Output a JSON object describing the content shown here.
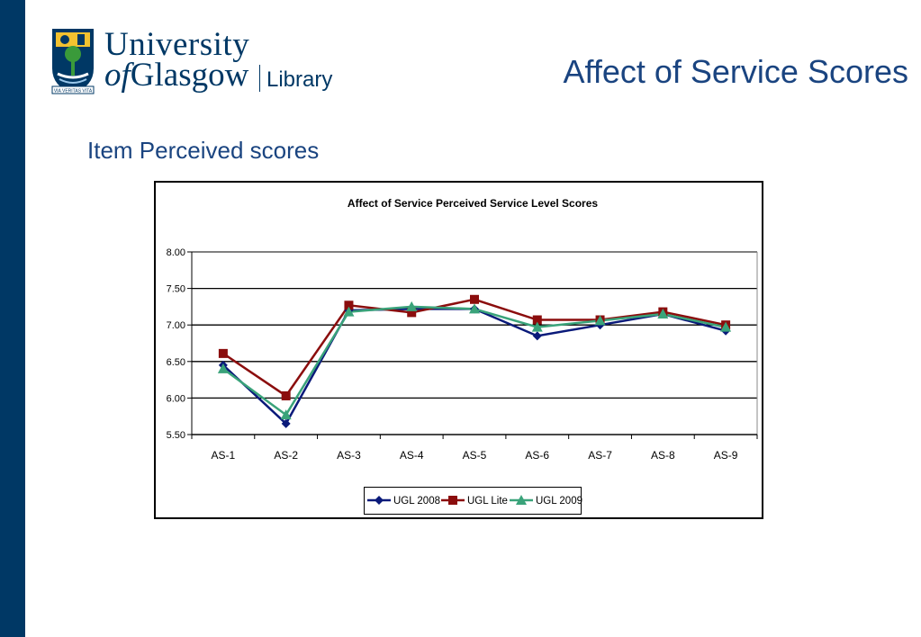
{
  "header": {
    "logo": {
      "line1": "University",
      "of": "of",
      "glasgow": "Glasgow",
      "library": "Library",
      "motto": "VIA VERITAS VITA"
    },
    "title": "Affect of Service Scores",
    "subtitle": "Item Perceived scores"
  },
  "colors": {
    "sidebar": "#003865",
    "title": "#1a4480",
    "series_ugl2008": "#0a1a7a",
    "series_ugllite": "#8b0d0d",
    "series_ugl2009": "#3aa37a"
  },
  "chart_data": {
    "type": "line",
    "title": "Affect of Service Perceived Service Level Scores",
    "xlabel": "",
    "ylabel": "",
    "categories": [
      "AS-1",
      "AS-2",
      "AS-3",
      "AS-4",
      "AS-5",
      "AS-6",
      "AS-7",
      "AS-8",
      "AS-9"
    ],
    "ylim": [
      5.5,
      8.0
    ],
    "yticks": [
      "8.00",
      "7.50",
      "7.00",
      "6.50",
      "6.00",
      "5.50"
    ],
    "grid": true,
    "legend": "bottom",
    "series": [
      {
        "name": "UGL 2008",
        "marker": "diamond",
        "values": [
          6.45,
          5.65,
          7.2,
          7.22,
          7.22,
          6.85,
          7.0,
          7.15,
          6.92
        ]
      },
      {
        "name": "UGL Lite",
        "marker": "square",
        "values": [
          6.61,
          6.03,
          7.27,
          7.17,
          7.35,
          7.07,
          7.07,
          7.18,
          7.0
        ]
      },
      {
        "name": "UGL 2009",
        "marker": "triangle",
        "values": [
          6.4,
          5.77,
          7.18,
          7.25,
          7.22,
          6.97,
          7.06,
          7.15,
          6.97
        ]
      }
    ]
  }
}
